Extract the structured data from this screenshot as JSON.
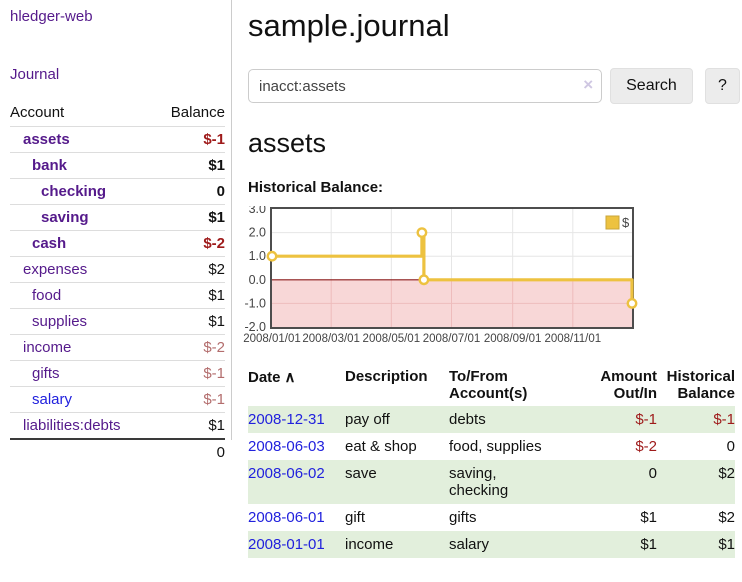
{
  "app": {
    "title": "hledger-web"
  },
  "sidebar": {
    "journal_link": "Journal",
    "accounts_table": {
      "account_header": "Account",
      "balance_header": "Balance",
      "rows": [
        {
          "name": "assets",
          "indent": 1,
          "bold": true,
          "balance": "$-1",
          "balance_style": "negative"
        },
        {
          "name": "bank",
          "indent": 2,
          "bold": true,
          "balance": "$1",
          "balance_style": "normal"
        },
        {
          "name": "checking",
          "indent": 3,
          "bold": true,
          "balance": "0",
          "balance_style": "normal"
        },
        {
          "name": "saving",
          "indent": 3,
          "bold": true,
          "balance": "$1",
          "balance_style": "normal"
        },
        {
          "name": "cash",
          "indent": 2,
          "bold": true,
          "balance": "$-2",
          "balance_style": "negative"
        },
        {
          "name": "expenses",
          "indent": 1,
          "bold": false,
          "balance": "$2",
          "balance_style": "normal"
        },
        {
          "name": "food",
          "indent": 2,
          "bold": false,
          "balance": "$1",
          "balance_style": "normal"
        },
        {
          "name": "supplies",
          "indent": 2,
          "bold": false,
          "balance": "$1",
          "balance_style": "normal"
        },
        {
          "name": "income",
          "indent": 1,
          "bold": false,
          "balance": "$-2",
          "balance_style": "muted-negative"
        },
        {
          "name": "gifts",
          "indent": 2,
          "bold": false,
          "balance": "$-1",
          "balance_style": "muted-negative"
        },
        {
          "name": "salary",
          "indent": 2,
          "bold": false,
          "link_style": "unvisited",
          "balance": "$-1",
          "balance_style": "muted-negative"
        },
        {
          "name": "liabilities:debts",
          "indent": 1,
          "bold": false,
          "balance": "$1",
          "balance_style": "normal"
        }
      ],
      "total": "0"
    }
  },
  "header": {
    "title": "sample.journal"
  },
  "search": {
    "value": "inacct:assets",
    "clear_icon": "×",
    "button_label": "Search",
    "help_label": "?"
  },
  "account_page": {
    "heading": "assets",
    "chart_label": "Historical Balance:"
  },
  "chart_data": {
    "type": "line",
    "title": "Historical Balance",
    "step": true,
    "series": [
      {
        "name": "$",
        "color": "#edc240",
        "points": [
          [
            "2008-01-01",
            1
          ],
          [
            "2008-06-01",
            2
          ],
          [
            "2008-06-02",
            2
          ],
          [
            "2008-06-03",
            0
          ],
          [
            "2008-12-31",
            -1
          ]
        ],
        "markers": [
          [
            "2008-01-01",
            1
          ],
          [
            "2008-06-01",
            2
          ],
          [
            "2008-06-03",
            0
          ],
          [
            "2008-12-31",
            -1
          ]
        ]
      }
    ],
    "x_domain": [
      "2008-01-01",
      "2008-12-31"
    ],
    "xtick_labels": [
      "2008/01/01",
      "2008/03/01",
      "2008/05/01",
      "2008/07/01",
      "2008/09/01",
      "2008/11/01"
    ],
    "yticks": [
      3.0,
      2.0,
      1.0,
      0.0,
      -1.0,
      -2.0
    ],
    "ylim": [
      -2,
      3
    ],
    "grid": true,
    "negative_region_color": "#f8d7d7",
    "zero_line_color": "#8b1a1a",
    "legend": {
      "label": "$",
      "color": "#edc240",
      "position": "top-right"
    }
  },
  "register": {
    "columns": [
      {
        "label": "Date",
        "sort_icon": "∧",
        "align": "left"
      },
      {
        "label": "Description",
        "align": "left"
      },
      {
        "label": "To/From\nAccount(s)",
        "align": "left"
      },
      {
        "label": "Amount\nOut/In",
        "align": "right"
      },
      {
        "label": "Historical\nBalance",
        "align": "right"
      }
    ],
    "rows": [
      {
        "date": "2008-12-31",
        "description": "pay off",
        "accounts": "debts",
        "amount": "$-1",
        "amount_style": "negative",
        "balance": "$-1",
        "balance_style": "negative"
      },
      {
        "date": "2008-06-03",
        "description": "eat & shop",
        "accounts": "food, supplies",
        "amount": "$-2",
        "amount_style": "negative",
        "balance": "0",
        "balance_style": "normal"
      },
      {
        "date": "2008-06-02",
        "description": "save",
        "accounts": "saving,\nchecking",
        "amount": "0",
        "amount_style": "normal",
        "balance": "$2",
        "balance_style": "normal"
      },
      {
        "date": "2008-06-01",
        "description": "gift",
        "accounts": "gifts",
        "amount": "$1",
        "amount_style": "normal",
        "balance": "$2",
        "balance_style": "normal"
      },
      {
        "date": "2008-01-01",
        "description": "income",
        "accounts": "salary",
        "amount": "$1",
        "amount_style": "normal",
        "balance": "$1",
        "balance_style": "normal"
      }
    ]
  }
}
